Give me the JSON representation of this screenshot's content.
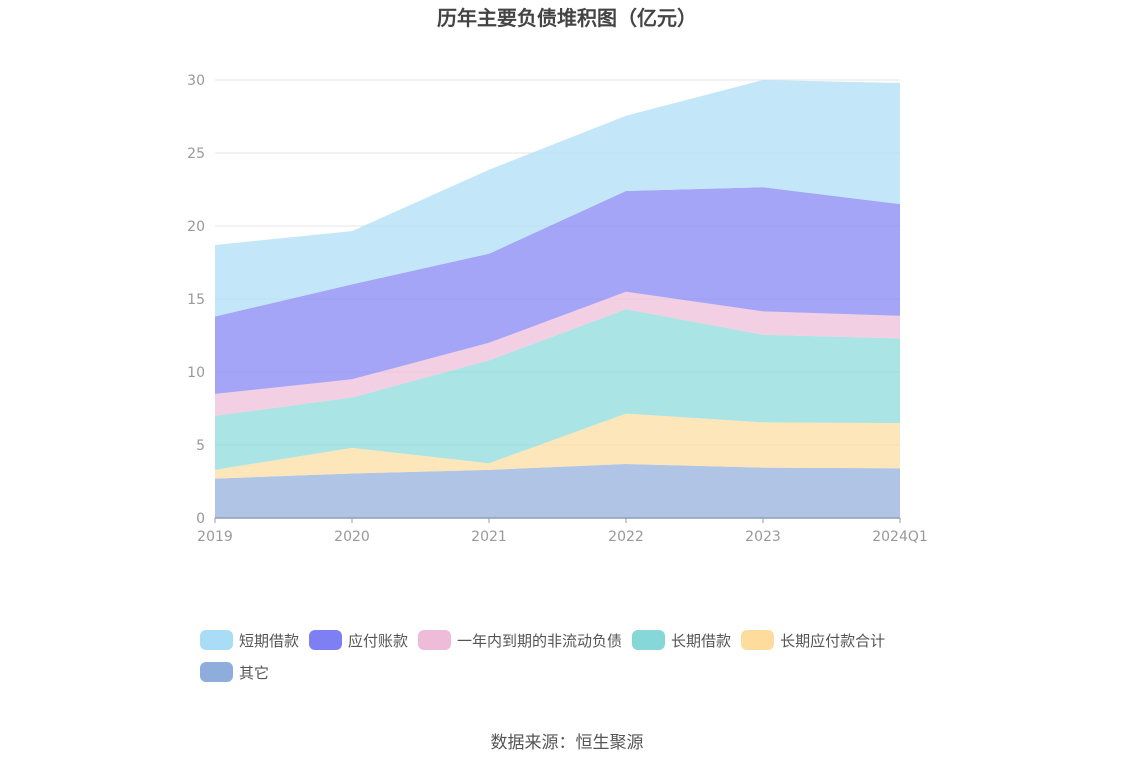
{
  "chart_data": {
    "type": "area",
    "stacked": true,
    "title": "历年主要负债堆积图（亿元）",
    "categories": [
      "2019",
      "2020",
      "2021",
      "2022",
      "2023",
      "2024Q1"
    ],
    "ylim": [
      0,
      30
    ],
    "yticks": [
      "0",
      "5",
      "10",
      "15",
      "20",
      "25",
      "30"
    ],
    "grid": true,
    "legend_position": "bottom",
    "series": [
      {
        "name": "其它",
        "color": "#8faddb",
        "values": [
          2.7,
          3.05,
          3.3,
          3.7,
          3.45,
          3.4
        ]
      },
      {
        "name": "长期应付款合计",
        "color": "#fddc9e",
        "values": [
          0.6,
          1.75,
          0.45,
          3.45,
          3.1,
          3.1
        ]
      },
      {
        "name": "长期借款",
        "color": "#86d8d8",
        "values": [
          3.7,
          3.45,
          7.05,
          7.15,
          6.0,
          5.8
        ]
      },
      {
        "name": "一年内到期的非流动负债",
        "color": "#eebbd9",
        "values": [
          1.5,
          1.25,
          1.2,
          1.2,
          1.6,
          1.55
        ]
      },
      {
        "name": "应付账款",
        "color": "#7f7ff5",
        "values": [
          5.3,
          6.5,
          6.1,
          6.9,
          8.5,
          7.65
        ]
      },
      {
        "name": "短期借款",
        "color": "#a9ddf6",
        "values": [
          4.9,
          3.65,
          5.75,
          5.15,
          7.35,
          8.3
        ]
      }
    ],
    "legend_order": [
      "短期借款",
      "应付账款",
      "一年内到期的非流动负债",
      "长期借款",
      "长期应付款合计",
      "其它"
    ]
  },
  "source_note": "数据来源：恒生聚源"
}
